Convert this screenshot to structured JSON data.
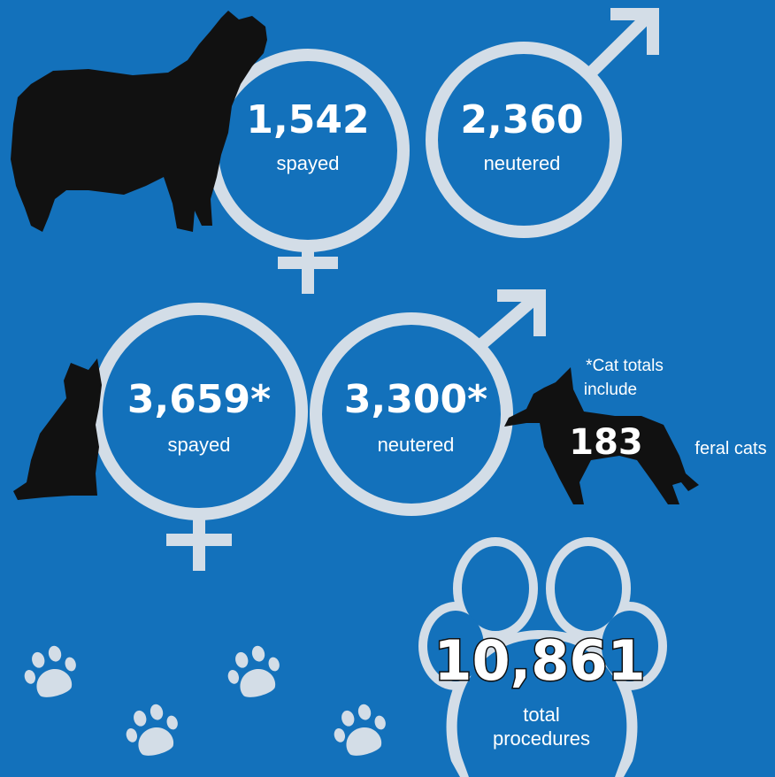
{
  "dogs": {
    "spayed": {
      "count": "1,542",
      "label": "spayed"
    },
    "neutered": {
      "count": "2,360",
      "label": "neutered"
    }
  },
  "cats": {
    "spayed": {
      "count": "3,659*",
      "label": "spayed"
    },
    "neutered": {
      "count": "3,300*",
      "label": "neutered"
    }
  },
  "note": {
    "line1": "*Cat totals",
    "line2": "include",
    "count": "183",
    "tail": "feral cats"
  },
  "total": {
    "count": "10,861",
    "line1": "total",
    "line2": "procedures"
  }
}
